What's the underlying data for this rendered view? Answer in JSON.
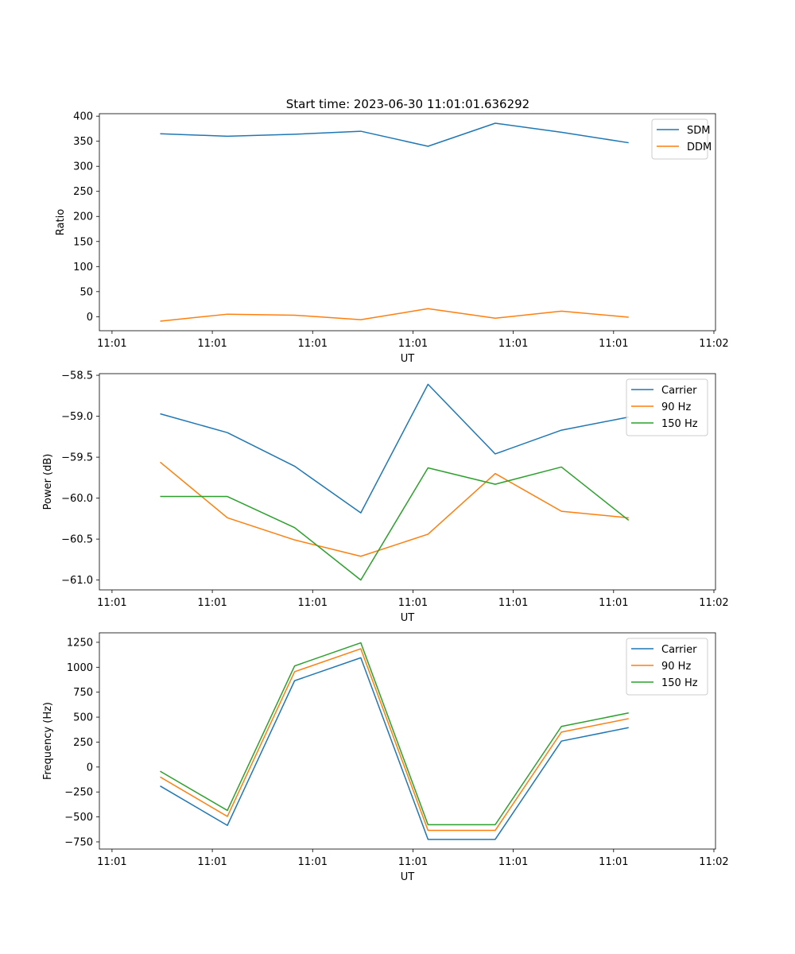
{
  "figure": {
    "title": "Start time: 2023-06-30 11:01:01.636292"
  },
  "chart_data": [
    {
      "type": "line",
      "title": "Start time: 2023-06-30 11:01:01.636292",
      "xlabel": "UT",
      "ylabel": "Ratio",
      "x_ticks": [
        {
          "pos": 0,
          "label": "11:01"
        },
        {
          "pos": 1,
          "label": "11:01"
        },
        {
          "pos": 2,
          "label": "11:01"
        },
        {
          "pos": 3,
          "label": "11:01"
        },
        {
          "pos": 4,
          "label": "11:01"
        },
        {
          "pos": 5,
          "label": "11:01"
        },
        {
          "pos": 6,
          "label": "11:02"
        }
      ],
      "xlim": [
        -0.126,
        6.016
      ],
      "x": [
        0.48,
        1.15,
        1.82,
        2.48,
        3.15,
        3.82,
        4.48,
        5.15
      ],
      "ylim": [
        -28,
        405
      ],
      "y_ticks": [
        0,
        50,
        100,
        150,
        200,
        250,
        300,
        350,
        400
      ],
      "y_tick_labels": [
        "0",
        "50",
        "100",
        "150",
        "200",
        "250",
        "300",
        "350",
        "400"
      ],
      "grid": false,
      "legend": "upper right",
      "series": [
        {
          "name": "SDM",
          "color": "#1f77b4",
          "values": [
            365,
            360,
            364,
            370,
            340,
            386,
            368,
            347
          ]
        },
        {
          "name": "DDM",
          "color": "#ff7f0e",
          "values": [
            -9,
            5,
            3,
            -6,
            16,
            -3,
            11,
            -1
          ]
        }
      ]
    },
    {
      "type": "line",
      "title": "",
      "xlabel": "UT",
      "ylabel": "Power (dB)",
      "x_ticks": [
        {
          "pos": 0,
          "label": "11:01"
        },
        {
          "pos": 1,
          "label": "11:01"
        },
        {
          "pos": 2,
          "label": "11:01"
        },
        {
          "pos": 3,
          "label": "11:01"
        },
        {
          "pos": 4,
          "label": "11:01"
        },
        {
          "pos": 5,
          "label": "11:01"
        },
        {
          "pos": 6,
          "label": "11:02"
        }
      ],
      "xlim": [
        -0.126,
        6.016
      ],
      "x": [
        0.48,
        1.15,
        1.82,
        2.48,
        3.15,
        3.82,
        4.48,
        5.15
      ],
      "ylim": [
        -61.12,
        -58.48
      ],
      "y_ticks": [
        -61.0,
        -60.5,
        -60.0,
        -59.5,
        -59.0,
        -58.5
      ],
      "y_tick_labels": [
        "−61.0",
        "−60.5",
        "−60.0",
        "−59.5",
        "−59.0",
        "−58.5"
      ],
      "grid": false,
      "legend": "upper right",
      "series": [
        {
          "name": "Carrier",
          "color": "#1f77b4",
          "values": [
            -58.97,
            -59.2,
            -59.61,
            -60.18,
            -58.61,
            -59.46,
            -59.17,
            -59.01
          ]
        },
        {
          "name": "90 Hz",
          "color": "#ff7f0e",
          "values": [
            -59.56,
            -60.24,
            -60.51,
            -60.71,
            -60.44,
            -59.7,
            -60.16,
            -60.24
          ]
        },
        {
          "name": "150 Hz",
          "color": "#2ca02c",
          "values": [
            -59.98,
            -59.98,
            -60.36,
            -61.0,
            -59.63,
            -59.83,
            -59.62,
            -60.27
          ]
        }
      ]
    },
    {
      "type": "line",
      "title": "",
      "xlabel": "UT",
      "ylabel": "Frequency (Hz)",
      "x_ticks": [
        {
          "pos": 0,
          "label": "11:01"
        },
        {
          "pos": 1,
          "label": "11:01"
        },
        {
          "pos": 2,
          "label": "11:01"
        },
        {
          "pos": 3,
          "label": "11:01"
        },
        {
          "pos": 4,
          "label": "11:01"
        },
        {
          "pos": 5,
          "label": "11:01"
        },
        {
          "pos": 6,
          "label": "11:02"
        }
      ],
      "xlim": [
        -0.126,
        6.016
      ],
      "x": [
        0.48,
        1.15,
        1.82,
        2.48,
        3.15,
        3.82,
        4.48,
        5.15
      ],
      "ylim": [
        -822,
        1345
      ],
      "y_ticks": [
        -750,
        -500,
        -250,
        0,
        250,
        500,
        750,
        1000,
        1250
      ],
      "y_tick_labels": [
        "−750",
        "−500",
        "−250",
        "0",
        "250",
        "500",
        "750",
        "1000",
        "1250"
      ],
      "grid": false,
      "legend": "upper right",
      "series": [
        {
          "name": "Carrier",
          "color": "#1f77b4",
          "values": [
            -190,
            -585,
            865,
            1095,
            -725,
            -725,
            260,
            395
          ]
        },
        {
          "name": "90 Hz",
          "color": "#ff7f0e",
          "values": [
            -100,
            -495,
            955,
            1185,
            -635,
            -635,
            350,
            485
          ]
        },
        {
          "name": "150 Hz",
          "color": "#2ca02c",
          "values": [
            -42,
            -435,
            1013,
            1245,
            -578,
            -578,
            407,
            542
          ]
        }
      ]
    }
  ]
}
